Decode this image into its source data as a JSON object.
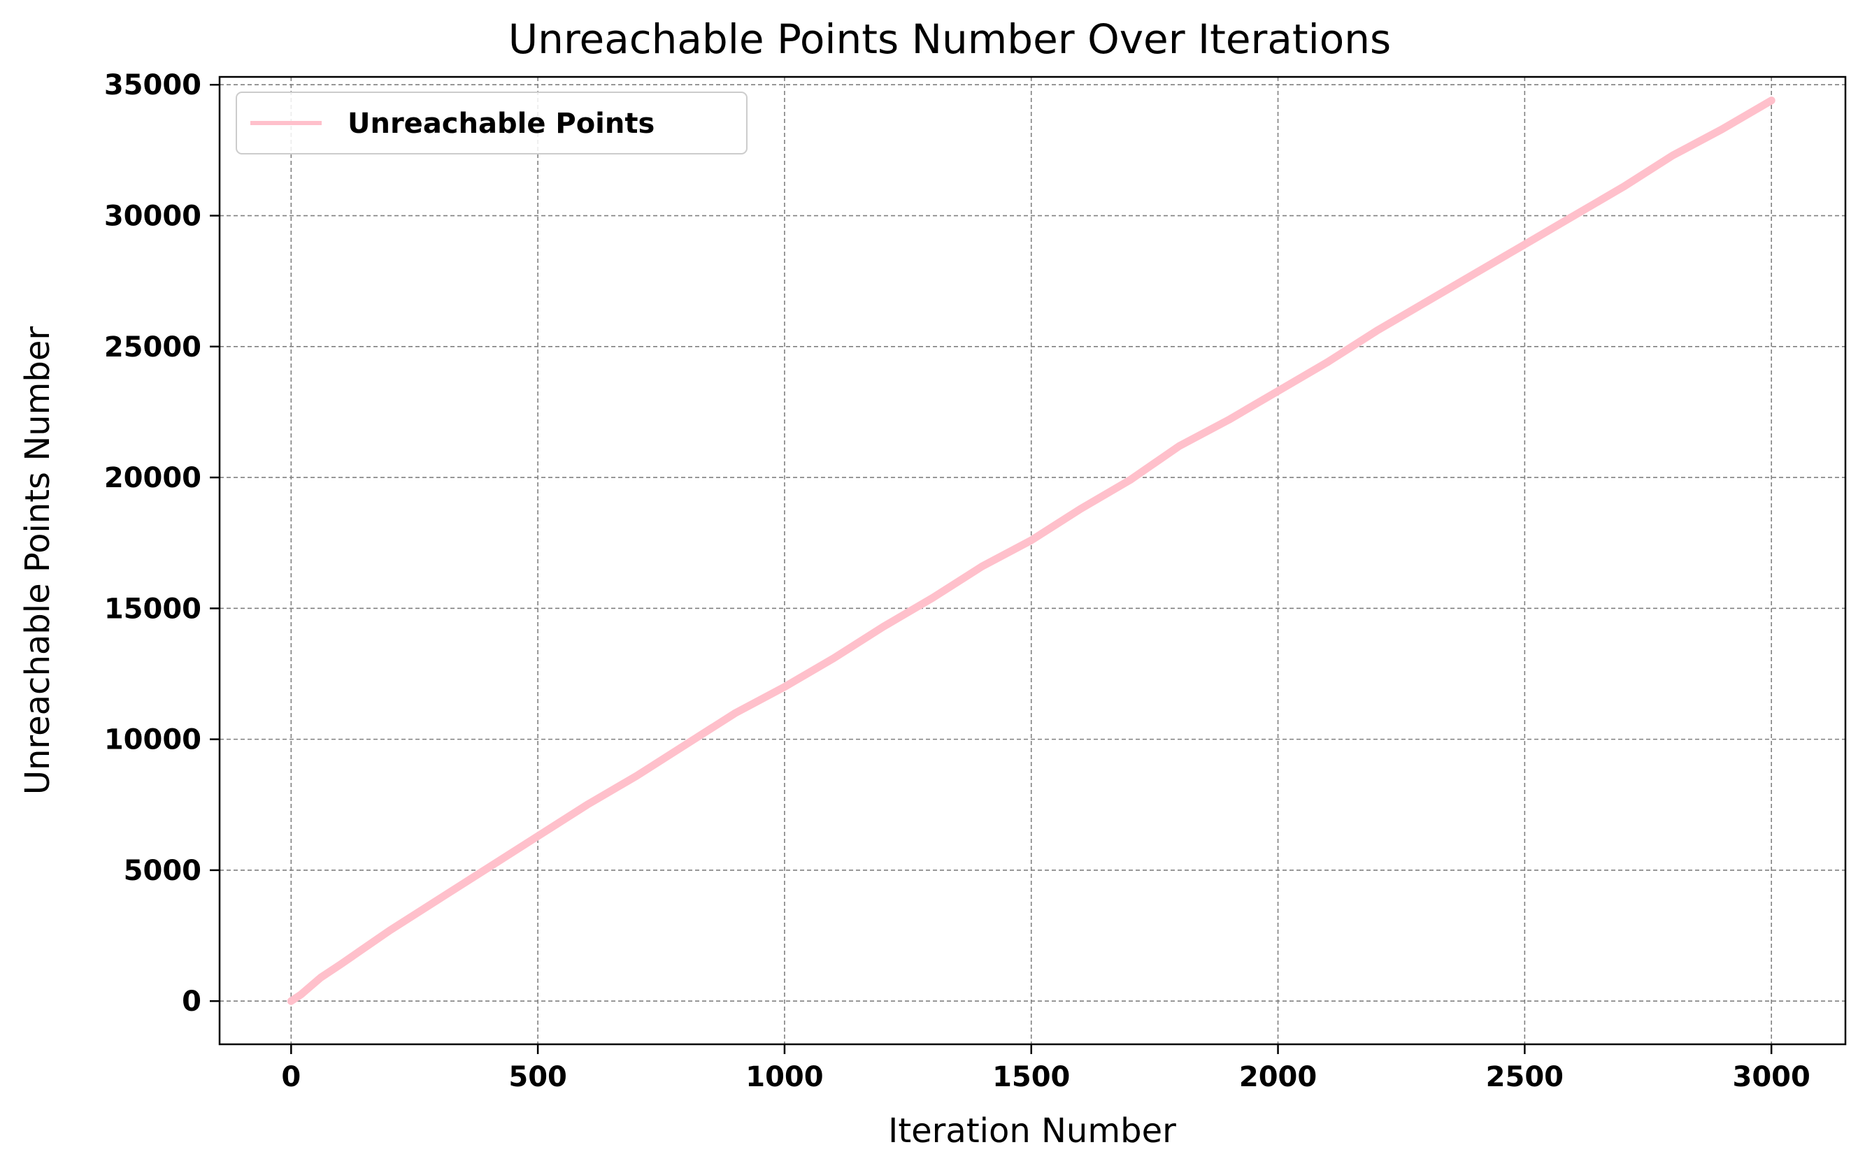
{
  "chart_data": {
    "type": "line",
    "title": "Unreachable Points Number Over Iterations",
    "xlabel": "Iteration Number",
    "ylabel": "Unreachable Points Number",
    "xlim": [
      -145,
      3150
    ],
    "ylim": [
      -1650,
      35300
    ],
    "xticks": [
      0,
      500,
      1000,
      1500,
      2000,
      2500,
      3000
    ],
    "yticks": [
      0,
      5000,
      10000,
      15000,
      20000,
      25000,
      30000,
      35000
    ],
    "grid": true,
    "legend": {
      "position": "top-left"
    },
    "series": [
      {
        "name": "Unreachable Points",
        "color": "#ffc0cb",
        "x": [
          0,
          20,
          60,
          100,
          200,
          300,
          400,
          500,
          600,
          700,
          800,
          900,
          1000,
          1100,
          1200,
          1300,
          1400,
          1500,
          1600,
          1700,
          1800,
          1900,
          2000,
          2100,
          2200,
          2300,
          2400,
          2500,
          2600,
          2700,
          2800,
          2900,
          3000
        ],
        "y": [
          0,
          250,
          900,
          1400,
          2700,
          3900,
          5100,
          6300,
          7500,
          8600,
          9800,
          11000,
          12000,
          13100,
          14300,
          15400,
          16600,
          17600,
          18800,
          19900,
          21200,
          22200,
          23300,
          24400,
          25600,
          26700,
          27800,
          28900,
          30000,
          31100,
          32300,
          33300,
          34400
        ]
      }
    ]
  }
}
